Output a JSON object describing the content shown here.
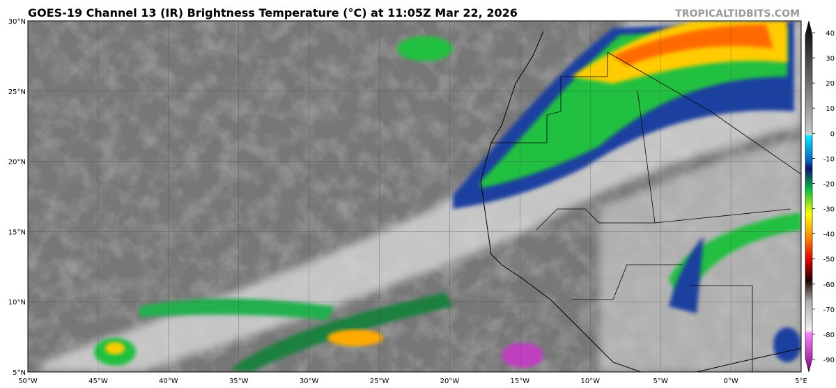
{
  "title": "GOES-19 Channel 13 (IR) Brightness Temperature (°C) at 11:05Z Mar 22, 2026",
  "credit": "TROPICALTIDBITS.COM",
  "map": {
    "lat_labels": [
      "30°N",
      "25°N",
      "20°N",
      "15°N",
      "10°N",
      "5°N"
    ],
    "lon_labels": [
      "50°W",
      "45°W",
      "40°W",
      "35°W",
      "30°W",
      "25°W",
      "20°W",
      "15°W",
      "10°W",
      "5°W",
      "0°W",
      "5°E"
    ]
  },
  "colorbar": {
    "ticks": [
      40,
      30,
      20,
      10,
      0,
      -10,
      -20,
      -30,
      -40,
      -50,
      -60,
      -70,
      -80,
      -90
    ]
  }
}
